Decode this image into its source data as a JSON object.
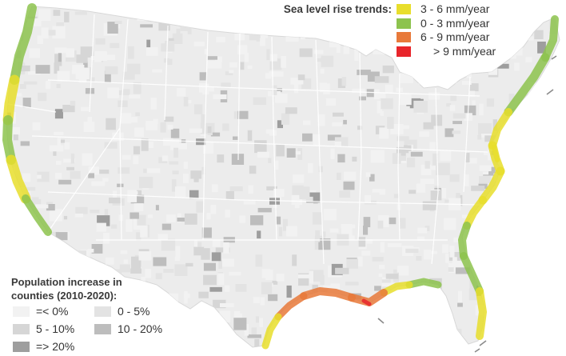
{
  "sea_legend": {
    "title": "Sea level rise trends:",
    "items": [
      {
        "label": "3 - 6 mm/year",
        "color": "#e8de2c"
      },
      {
        "label": "0 - 3 mm/year",
        "color": "#8dc34e"
      },
      {
        "label": "6 - 9 mm/year",
        "color": "#e8793a"
      },
      {
        "label": "> 9 mm/year",
        "color": "#e8252b"
      }
    ]
  },
  "population_legend": {
    "title_line1": "Population increase in",
    "title_line2": "counties (2010-2020):",
    "items": [
      {
        "label": "=< 0%",
        "color": "#f2f2f2"
      },
      {
        "label": "0 - 5%",
        "color": "#e3e3e3"
      },
      {
        "label": "5 - 10%",
        "color": "#d6d6d6"
      },
      {
        "label": "10 - 20%",
        "color": "#bdbdbd"
      },
      {
        "label": "=> 20%",
        "color": "#9e9e9e"
      }
    ]
  },
  "colors": {
    "land_base": "#ececec",
    "state_border": "#ffffff"
  }
}
